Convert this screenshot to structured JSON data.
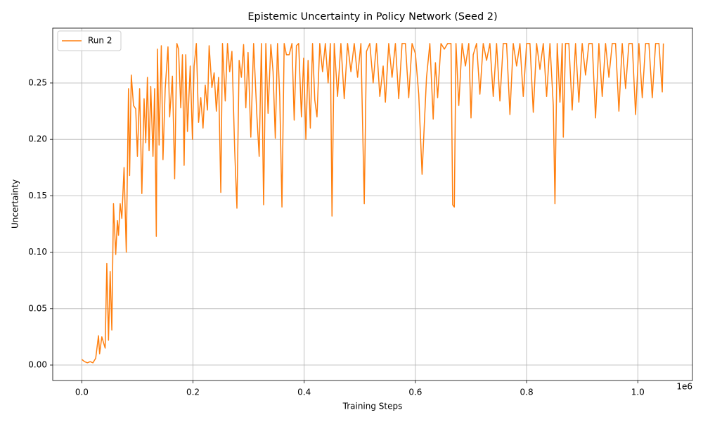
{
  "chart_data": {
    "type": "line",
    "title": "Epistemic Uncertainty in Policy Network (Seed 2)",
    "x_label": "Training Steps",
    "y_label": "Uncertainty",
    "x_offset_label": "1e6",
    "x": [
      0,
      5000,
      10000,
      15000,
      20000,
      25000,
      30000,
      32000,
      36000,
      42000,
      45000,
      48000,
      51000,
      54000,
      57000,
      61000,
      64000,
      66000,
      69000,
      72000,
      76000,
      80000,
      84000,
      86000,
      89000,
      93000,
      97000,
      100000,
      104000,
      108000,
      112000,
      115000,
      118000,
      121000,
      124000,
      128000,
      131000,
      134000,
      136000,
      139000,
      143000,
      146000,
      150000,
      155000,
      158000,
      163000,
      167000,
      171000,
      174000,
      178000,
      181000,
      184000,
      187000,
      190000,
      195000,
      199000,
      202000,
      206000,
      210000,
      214000,
      218000,
      222000,
      226000,
      229000,
      234000,
      238000,
      242000,
      246000,
      250000,
      253000,
      258000,
      262000,
      266000,
      270000,
      275000,
      279000,
      283000,
      287000,
      291000,
      295000,
      299000,
      304000,
      309000,
      315000,
      319000,
      323000,
      327000,
      331000,
      335000,
      340000,
      344000,
      348000,
      352000,
      356000,
      360000,
      364000,
      368000,
      373000,
      378000,
      382000,
      386000,
      390000,
      395000,
      399000,
      403000,
      407000,
      411000,
      415000,
      419000,
      423000,
      428000,
      433000,
      438000,
      443000,
      447000,
      450000,
      454000,
      460000,
      466000,
      472000,
      478000,
      484000,
      490000,
      496000,
      502000,
      508000,
      512000,
      518000,
      524000,
      530000,
      536000,
      542000,
      546000,
      552000,
      558000,
      564000,
      570000,
      576000,
      582000,
      588000,
      594000,
      600000,
      606000,
      612000,
      616000,
      620000,
      626000,
      632000,
      636000,
      640000,
      646000,
      652000,
      658000,
      664000,
      667000,
      670000,
      673000,
      678000,
      684000,
      690000,
      696000,
      700000,
      704000,
      710000,
      716000,
      722000,
      728000,
      734000,
      740000,
      746000,
      752000,
      758000,
      764000,
      770000,
      776000,
      782000,
      788000,
      794000,
      800000,
      806000,
      812000,
      818000,
      824000,
      830000,
      836000,
      842000,
      848000,
      851000,
      855000,
      860000,
      864000,
      866000,
      870000,
      876000,
      882000,
      888000,
      894000,
      900000,
      906000,
      912000,
      918000,
      924000,
      930000,
      936000,
      942000,
      948000,
      954000,
      960000,
      966000,
      972000,
      978000,
      984000,
      990000,
      996000,
      1002000,
      1008000,
      1014000,
      1020000,
      1026000,
      1032000,
      1038000,
      1044000,
      1046000
    ],
    "series": [
      {
        "name": "Run 2",
        "color": "#ff7f0e",
        "values": [
          0.005,
          0.003,
          0.002,
          0.003,
          0.002,
          0.006,
          0.026,
          0.01,
          0.025,
          0.015,
          0.09,
          0.022,
          0.083,
          0.031,
          0.143,
          0.098,
          0.128,
          0.115,
          0.143,
          0.13,
          0.175,
          0.1,
          0.245,
          0.168,
          0.257,
          0.23,
          0.227,
          0.185,
          0.245,
          0.152,
          0.236,
          0.197,
          0.255,
          0.19,
          0.247,
          0.185,
          0.245,
          0.114,
          0.28,
          0.195,
          0.283,
          0.182,
          0.245,
          0.282,
          0.22,
          0.256,
          0.165,
          0.285,
          0.28,
          0.228,
          0.275,
          0.177,
          0.275,
          0.207,
          0.265,
          0.2,
          0.265,
          0.285,
          0.215,
          0.237,
          0.21,
          0.248,
          0.226,
          0.283,
          0.246,
          0.259,
          0.225,
          0.255,
          0.153,
          0.285,
          0.234,
          0.285,
          0.26,
          0.278,
          0.19,
          0.139,
          0.27,
          0.255,
          0.284,
          0.228,
          0.277,
          0.202,
          0.285,
          0.22,
          0.185,
          0.285,
          0.142,
          0.285,
          0.223,
          0.284,
          0.26,
          0.201,
          0.285,
          0.238,
          0.14,
          0.285,
          0.275,
          0.275,
          0.285,
          0.217,
          0.283,
          0.285,
          0.22,
          0.272,
          0.2,
          0.27,
          0.21,
          0.285,
          0.235,
          0.22,
          0.285,
          0.26,
          0.285,
          0.25,
          0.285,
          0.132,
          0.285,
          0.238,
          0.285,
          0.236,
          0.285,
          0.26,
          0.285,
          0.255,
          0.285,
          0.143,
          0.278,
          0.285,
          0.25,
          0.285,
          0.238,
          0.265,
          0.233,
          0.285,
          0.255,
          0.285,
          0.236,
          0.285,
          0.285,
          0.237,
          0.285,
          0.276,
          0.24,
          0.169,
          0.213,
          0.255,
          0.285,
          0.218,
          0.268,
          0.237,
          0.285,
          0.28,
          0.285,
          0.285,
          0.142,
          0.14,
          0.285,
          0.23,
          0.285,
          0.265,
          0.285,
          0.219,
          0.275,
          0.285,
          0.24,
          0.285,
          0.27,
          0.285,
          0.238,
          0.285,
          0.234,
          0.285,
          0.285,
          0.222,
          0.285,
          0.265,
          0.285,
          0.238,
          0.285,
          0.285,
          0.224,
          0.285,
          0.262,
          0.285,
          0.238,
          0.285,
          0.23,
          0.143,
          0.285,
          0.233,
          0.285,
          0.202,
          0.285,
          0.285,
          0.226,
          0.285,
          0.233,
          0.285,
          0.257,
          0.285,
          0.285,
          0.219,
          0.285,
          0.238,
          0.285,
          0.255,
          0.285,
          0.285,
          0.225,
          0.285,
          0.245,
          0.285,
          0.285,
          0.222,
          0.285,
          0.237,
          0.285,
          0.285,
          0.237,
          0.285,
          0.285,
          0.242,
          0.285
        ]
      }
    ],
    "xlim": [
      -52300,
      1098300
    ],
    "xticks": [
      {
        "value": 0,
        "label": "0.0"
      },
      {
        "value": 200000,
        "label": "0.2"
      },
      {
        "value": 400000,
        "label": "0.4"
      },
      {
        "value": 600000,
        "label": "0.6"
      },
      {
        "value": 800000,
        "label": "0.8"
      },
      {
        "value": 1000000,
        "label": "1.0"
      }
    ],
    "ylim": [
      -0.0137,
      0.2986
    ],
    "yticks": [
      {
        "value": 0,
        "label": "0.00"
      },
      {
        "value": 0.05,
        "label": "0.05"
      },
      {
        "value": 0.1,
        "label": "0.10"
      },
      {
        "value": 0.15,
        "label": "0.15"
      },
      {
        "value": 0.2,
        "label": "0.20"
      },
      {
        "value": 0.25,
        "label": "0.25"
      }
    ],
    "grid": true,
    "legend": "upper left"
  }
}
